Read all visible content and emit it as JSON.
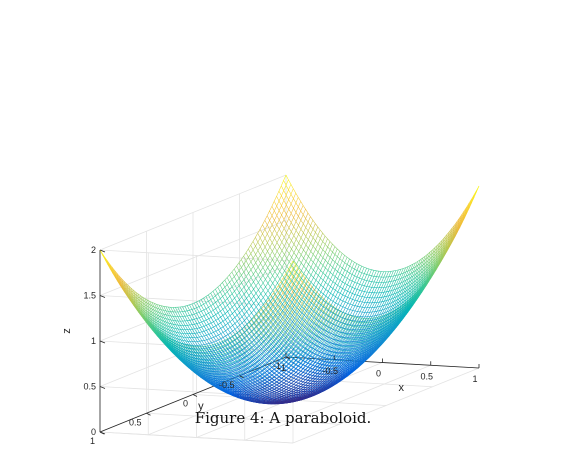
{
  "chart_data": {
    "type": "surface",
    "function": "z = x^2 + y^2",
    "x_range": [
      -1,
      1
    ],
    "y_range": [
      -1,
      1
    ],
    "z_range": [
      0,
      2
    ],
    "grid_points": 80,
    "render_style": "mesh",
    "colormap": "parula",
    "x_ticks": [
      {
        "value": -1,
        "label": "-1"
      },
      {
        "value": -0.5,
        "label": "-0.5"
      },
      {
        "value": 0,
        "label": "0"
      },
      {
        "value": 0.5,
        "label": "0.5"
      },
      {
        "value": 1,
        "label": "1"
      }
    ],
    "y_ticks": [
      {
        "value": -1,
        "label": "-1"
      },
      {
        "value": -0.5,
        "label": "-0.5"
      },
      {
        "value": 0,
        "label": "0"
      },
      {
        "value": 0.5,
        "label": "0.5"
      },
      {
        "value": 1,
        "label": "1"
      }
    ],
    "z_ticks": [
      {
        "value": 0,
        "label": "0"
      },
      {
        "value": 0.5,
        "label": "0.5"
      },
      {
        "value": 1,
        "label": "1"
      },
      {
        "value": 1.5,
        "label": "1.5"
      },
      {
        "value": 2,
        "label": "2"
      }
    ],
    "xlabel": "x",
    "ylabel": "y",
    "zlabel": "z",
    "grid": true,
    "box": "back-panels"
  },
  "caption": "Figure 4:  A paraboloid."
}
